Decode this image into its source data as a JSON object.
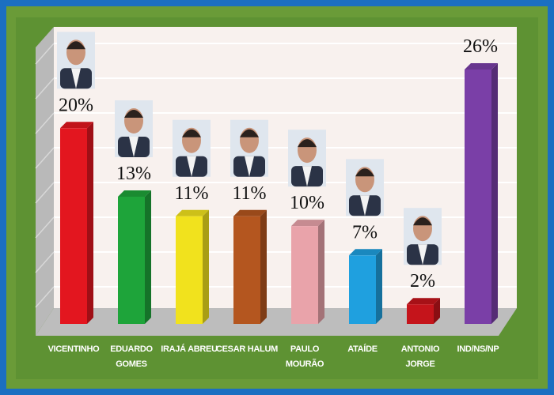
{
  "chart_data": {
    "type": "bar3d",
    "categories": [
      "VICENTINHO",
      "EDUARDO\nGOMES",
      "IRAJÁ ABREU",
      "CESAR HALUM",
      "PAULO\nMOURÃO",
      "ATAÍDE",
      "ANTONIO\nJORGE",
      "IND/NS/NP"
    ],
    "values": [
      20,
      13,
      11,
      11,
      10,
      7,
      2,
      26
    ],
    "value_labels": [
      "20%",
      "13%",
      "11%",
      "11%",
      "10%",
      "7%",
      "2%",
      "26%"
    ],
    "colors": [
      "#e3161f",
      "#1ea43a",
      "#f1e21d",
      "#b4561f",
      "#e9a3aa",
      "#1fa0df",
      "#c5141b",
      "#7a3fa7"
    ]
  }
}
